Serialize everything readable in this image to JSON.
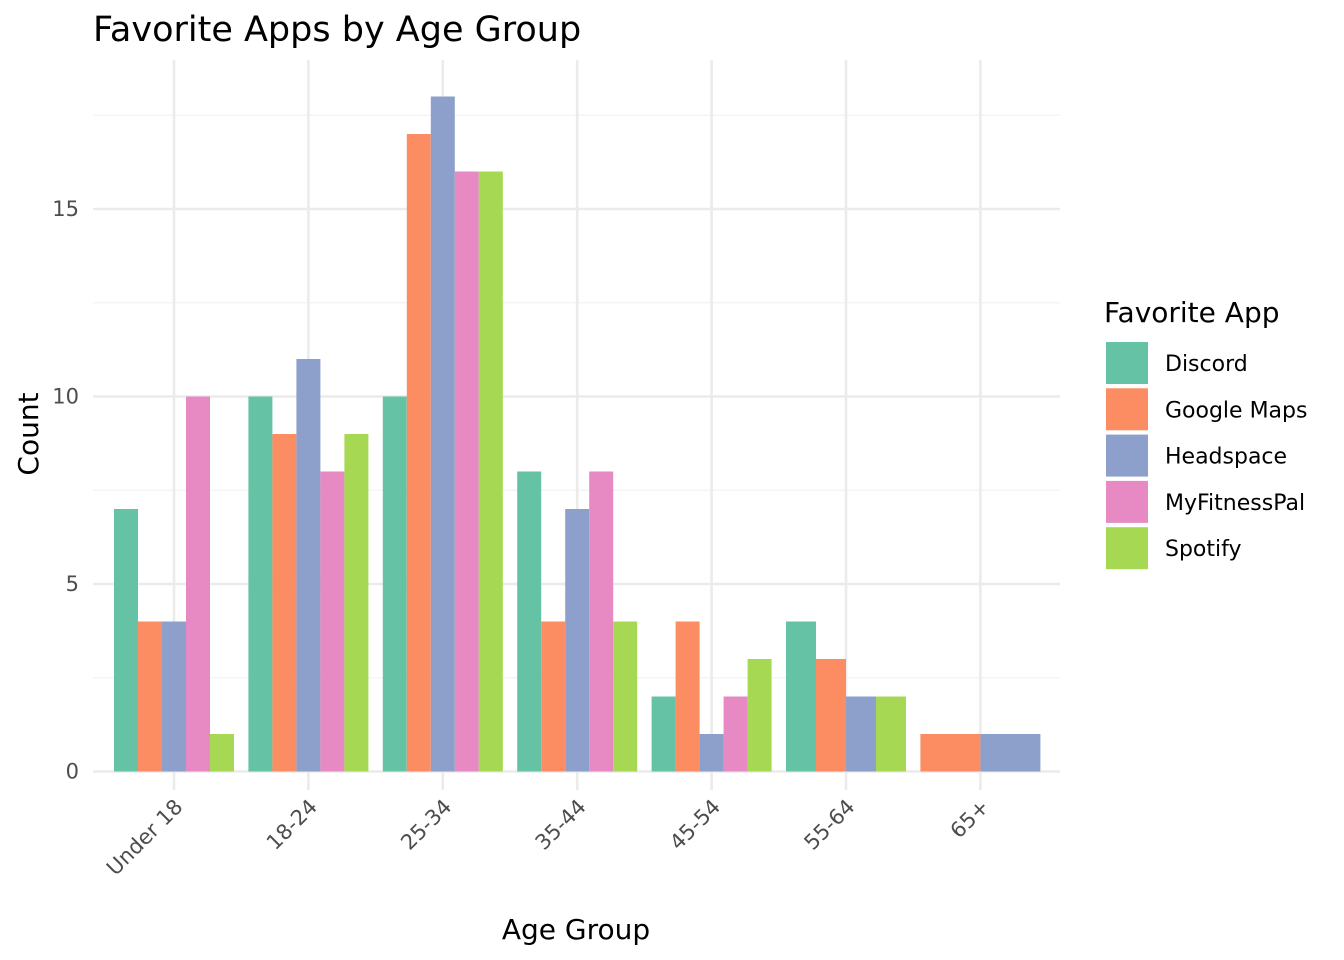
{
  "chart_data": {
    "type": "bar",
    "title": "Favorite Apps by Age Group",
    "xlabel": "Age Group",
    "ylabel": "Count",
    "categories": [
      "Under 18",
      "18-24",
      "25-34",
      "35-44",
      "45-54",
      "55-64",
      "65+"
    ],
    "yticks": [
      0,
      5,
      10,
      15
    ],
    "ytick_labels": [
      "0",
      "5",
      "10",
      "15"
    ],
    "ylim": [
      0,
      18.9
    ],
    "grid": true,
    "legend": {
      "title": "Favorite App",
      "position": "right"
    },
    "series": [
      {
        "name": "Discord",
        "color": "#66c2a5",
        "values": [
          7,
          10,
          10,
          8,
          2,
          4,
          0
        ]
      },
      {
        "name": "Google Maps",
        "color": "#fc8d62",
        "values": [
          4,
          9,
          17,
          4,
          4,
          3,
          1
        ]
      },
      {
        "name": "Headspace",
        "color": "#8da0cb",
        "values": [
          4,
          11,
          18,
          7,
          1,
          2,
          1
        ]
      },
      {
        "name": "MyFitnessPal",
        "color": "#e78ac3",
        "values": [
          10,
          8,
          16,
          8,
          2,
          0,
          0
        ]
      },
      {
        "name": "Spotify",
        "color": "#a6d854",
        "values": [
          1,
          9,
          16,
          4,
          3,
          2,
          0
        ]
      }
    ]
  }
}
